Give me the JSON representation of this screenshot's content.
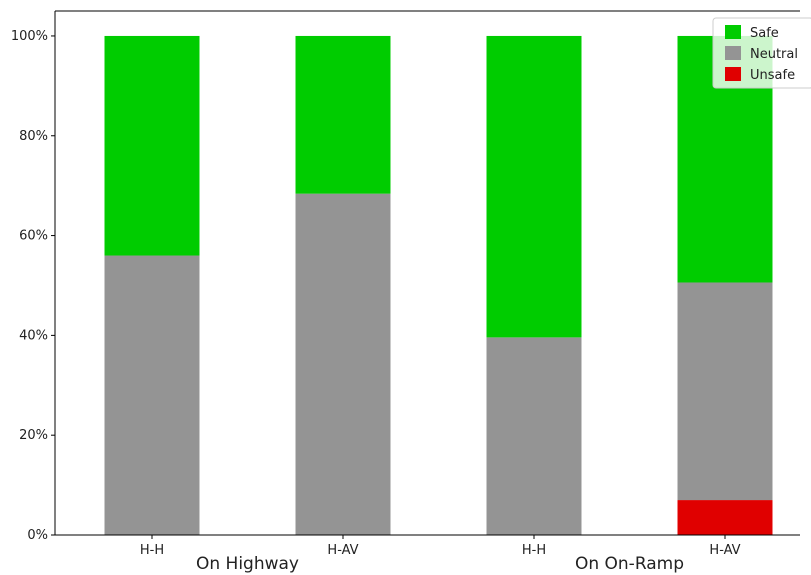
{
  "chart_data": {
    "type": "bar",
    "stacked": true,
    "categories": [
      "H-H",
      "H-AV",
      "H-H",
      "H-AV"
    ],
    "groups": [
      {
        "label": "On Highway",
        "categories": [
          0,
          1
        ]
      },
      {
        "label": "On On-Ramp",
        "categories": [
          2,
          3
        ]
      }
    ],
    "series": [
      {
        "name": "Unsafe",
        "color": "#e00000",
        "values": [
          0,
          0,
          0,
          7
        ]
      },
      {
        "name": "Neutral",
        "color": "#949494",
        "values": [
          56,
          68.4,
          39.6,
          43.6
        ]
      },
      {
        "name": "Safe",
        "color": "#00cc00",
        "values": [
          44,
          31.6,
          60.4,
          49.4
        ]
      }
    ],
    "legend_order": [
      "Safe",
      "Neutral",
      "Unsafe"
    ],
    "yticks": [
      "0%",
      "20%",
      "40%",
      "60%",
      "80%",
      "100%"
    ],
    "ytick_values": [
      0,
      20,
      40,
      60,
      80,
      100
    ],
    "ylim": [
      0,
      105
    ],
    "legend_position": "top-right",
    "grid": false
  }
}
